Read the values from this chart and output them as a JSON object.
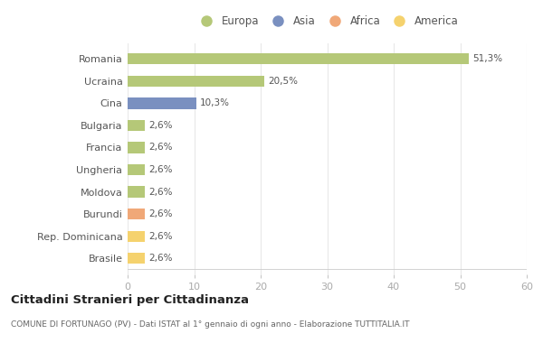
{
  "categories": [
    "Brasile",
    "Rep. Dominicana",
    "Burundi",
    "Moldova",
    "Ungheria",
    "Francia",
    "Bulgaria",
    "Cina",
    "Ucraina",
    "Romania"
  ],
  "values": [
    2.6,
    2.6,
    2.6,
    2.6,
    2.6,
    2.6,
    2.6,
    10.3,
    20.5,
    51.3
  ],
  "labels": [
    "2,6%",
    "2,6%",
    "2,6%",
    "2,6%",
    "2,6%",
    "2,6%",
    "2,6%",
    "10,3%",
    "20,5%",
    "51,3%"
  ],
  "colors": [
    "#f5d26e",
    "#f5d26e",
    "#f0a878",
    "#b5c878",
    "#b5c878",
    "#b5c878",
    "#b5c878",
    "#7a90c0",
    "#b5c878",
    "#b5c878"
  ],
  "legend_labels": [
    "Europa",
    "Asia",
    "Africa",
    "America"
  ],
  "legend_colors": [
    "#b5c878",
    "#7a90c0",
    "#f0a878",
    "#f5d26e"
  ],
  "xlim": [
    0,
    60
  ],
  "xticks": [
    0,
    10,
    20,
    30,
    40,
    50,
    60
  ],
  "title": "Cittadini Stranieri per Cittadinanza",
  "subtitle": "COMUNE DI FORTUNAGO (PV) - Dati ISTAT al 1° gennaio di ogni anno - Elaborazione TUTTITALIA.IT",
  "bg_color": "#ffffff",
  "bar_height": 0.5,
  "grid_color": "#e8e8e8"
}
